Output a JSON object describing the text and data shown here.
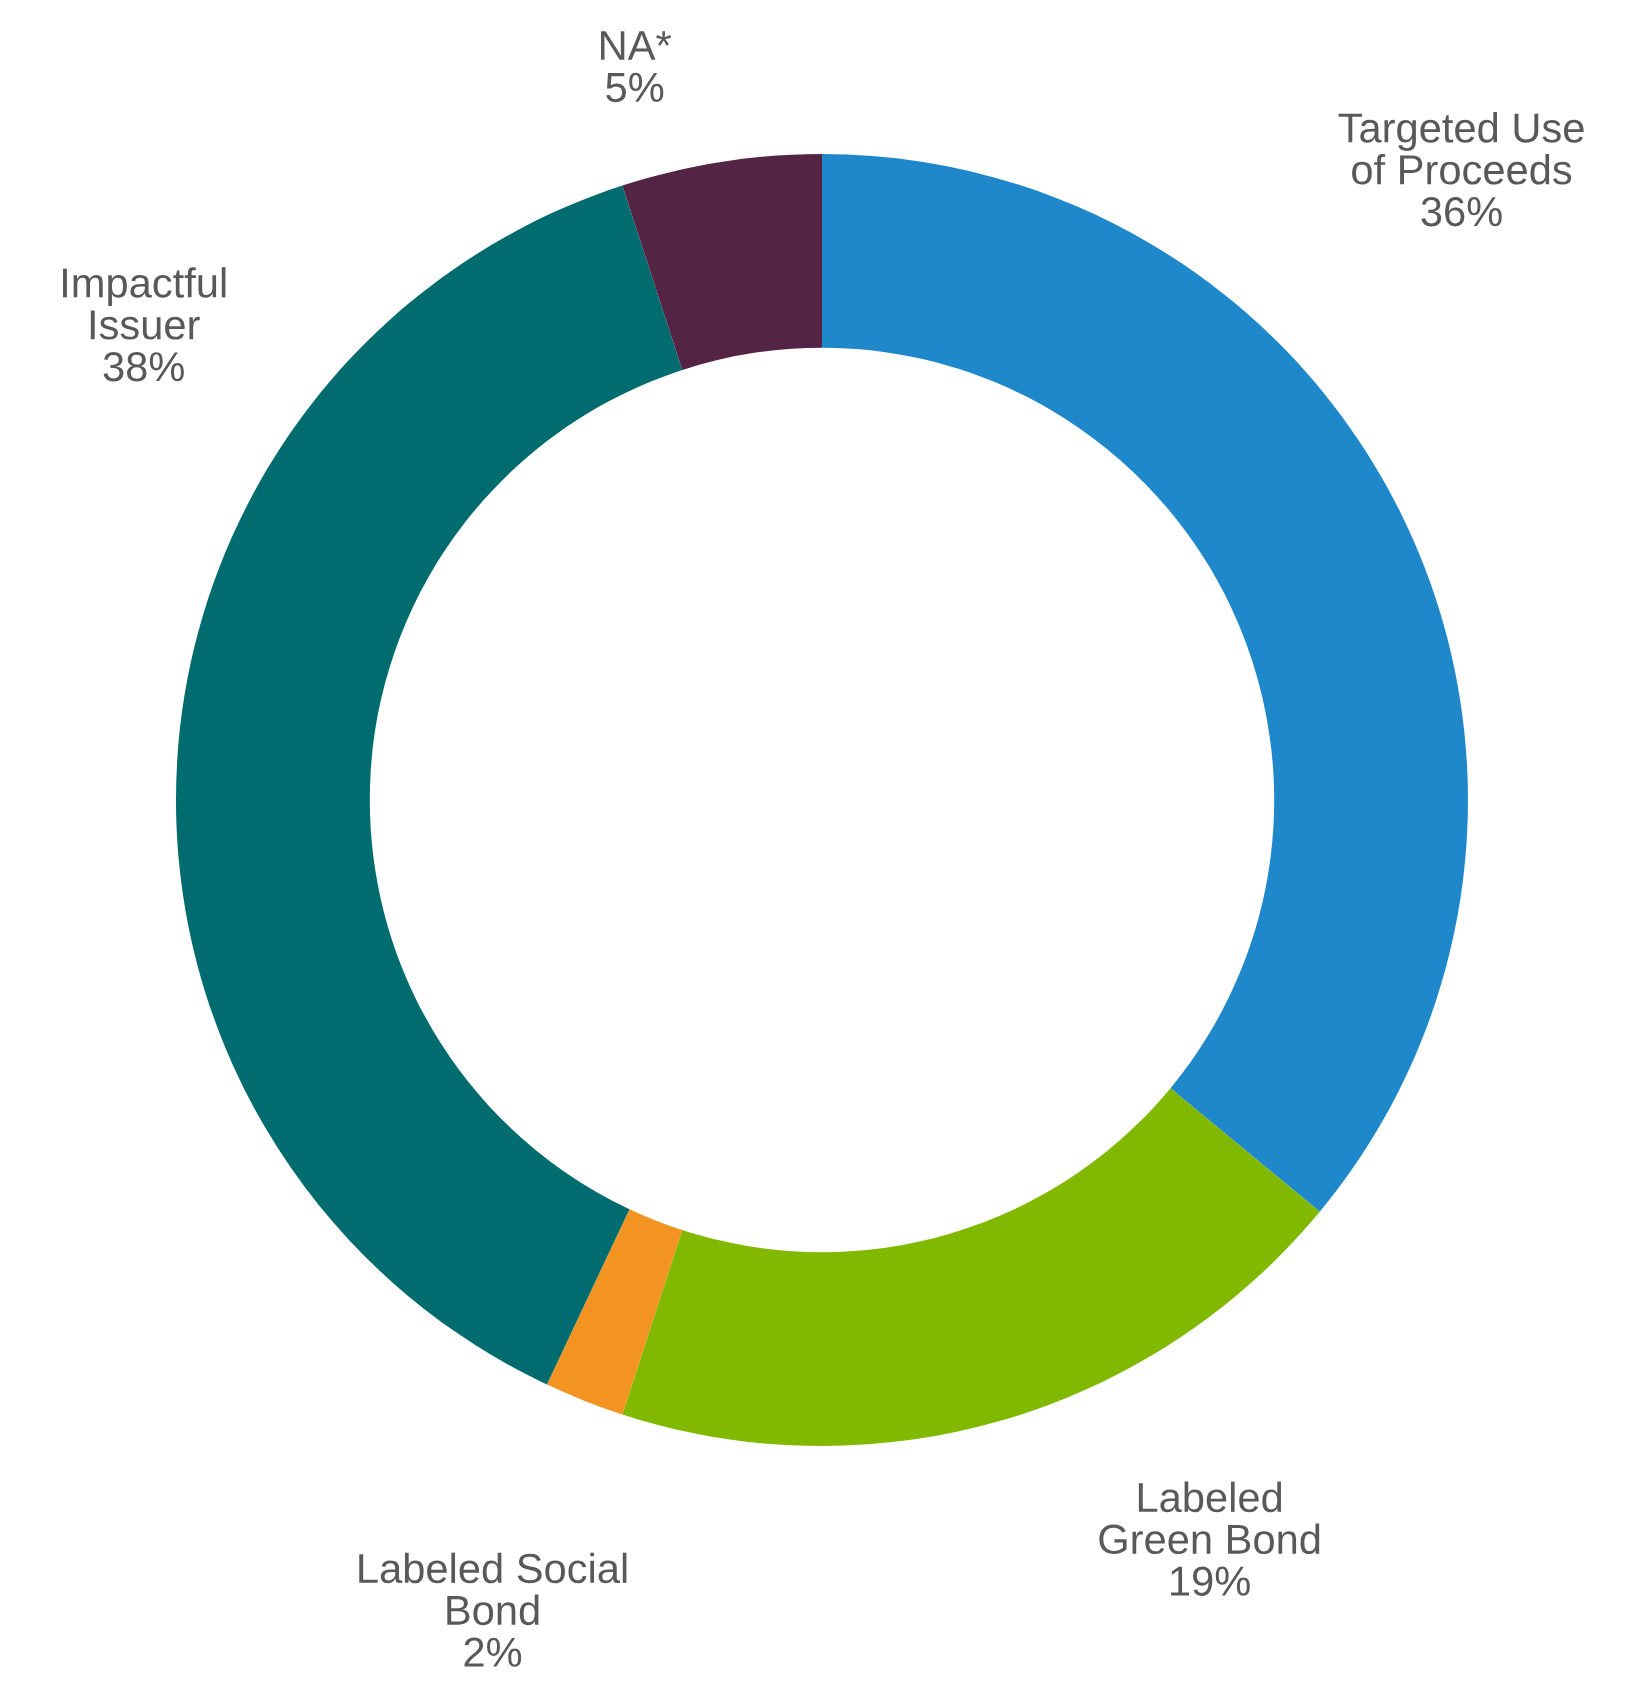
{
  "chart_data": {
    "type": "donut",
    "categories": [
      "Targeted Use\nof Proceeds",
      "Labeled\nGreen Bond",
      "Labeled Social\nBond",
      "Impactful\nIssuer",
      "NA*"
    ],
    "values": [
      36,
      19,
      2,
      38,
      5
    ],
    "colors": [
      "#1e88cb",
      "#80b900",
      "#f39422",
      "#006c70",
      "#532443"
    ],
    "value_labels": [
      "36%",
      "19%",
      "2%",
      "38%",
      "5%"
    ],
    "legend": false
  }
}
